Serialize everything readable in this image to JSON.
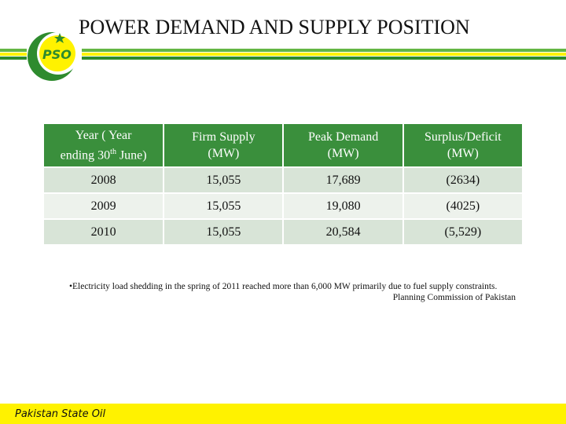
{
  "slide": {
    "title": "POWER DEMAND AND SUPPLY POSITION",
    "logo_text": "PSO",
    "footer_label": "Pakistan State Oil"
  },
  "colors": {
    "green_dark": "#2e8b2e",
    "green_light": "#64b644",
    "yellow": "#fff200",
    "header_green": "#3a8f3c",
    "row_shade": "#d8e4d7",
    "row_shade_alt": "#edf2ec"
  },
  "table": {
    "headers": {
      "year_line1": "Year ( Year",
      "year_line2_pre": "ending 30",
      "year_sup": "th",
      "year_line2_post": " June)",
      "firm_supply_line1": "Firm Supply",
      "firm_supply_line2": "(MW)",
      "peak_demand_line1": "Peak Demand",
      "peak_demand_line2": "(MW)",
      "surplus_line1": "Surplus/Deficit",
      "surplus_line2": "(MW)"
    },
    "rows": [
      {
        "year": "2008",
        "firm_supply": "15,055",
        "peak_demand": "17,689",
        "surplus_deficit": "(2634)"
      },
      {
        "year": "2009",
        "firm_supply": "15,055",
        "peak_demand": "19,080",
        "surplus_deficit": "(4025)"
      },
      {
        "year": "2010",
        "firm_supply": "15,055",
        "peak_demand": "20,584",
        "surplus_deficit": "(5,529)"
      }
    ]
  },
  "note": {
    "bullet": "•",
    "text": "Electricity load shedding in the spring of 2011 reached more than 6,000 MW primarily due to fuel supply constraints.",
    "source": "Planning Commission of Pakistan"
  }
}
